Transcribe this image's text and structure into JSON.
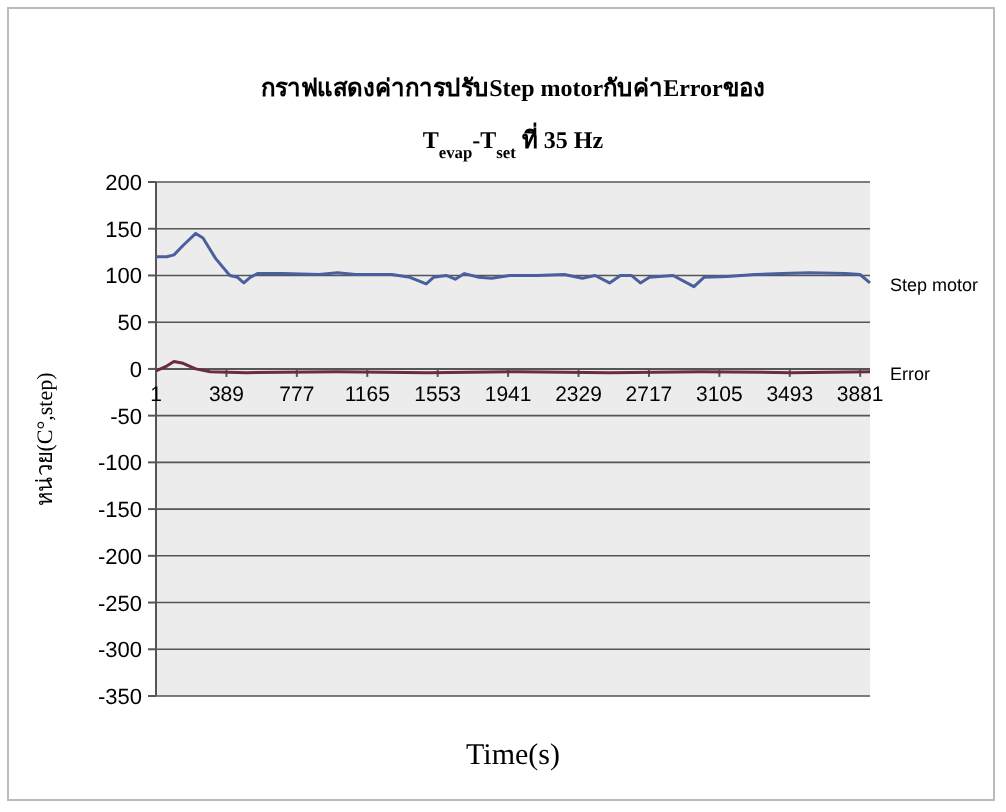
{
  "chart_data": {
    "type": "line",
    "title": "กราฟแสดงค่าการปรับStep motorกับค่าErrorของ",
    "subtitle": "T$_{evap}$-T$_{set}$ ที่ 35 Hz",
    "xlabel": "Time(s)",
    "ylabel": "หน่วย(C°,step)",
    "xlim": [
      1,
      3935
    ],
    "xticks": [
      1,
      389,
      777,
      1165,
      1553,
      1941,
      2329,
      2717,
      3105,
      3493,
      3881
    ],
    "ylim": [
      -350,
      200
    ],
    "yticks": [
      -350,
      -300,
      -250,
      -200,
      -150,
      -100,
      -50,
      0,
      50,
      100,
      150,
      200
    ],
    "grid": "y",
    "marker": "none",
    "line_style": "solid",
    "series": [
      {
        "name": "Step motor",
        "color": "#4a5f9e",
        "x": [
          1,
          60,
          100,
          150,
          220,
          260,
          330,
          408,
          450,
          485,
          520,
          560,
          700,
          900,
          1000,
          1100,
          1300,
          1400,
          1490,
          1530,
          1600,
          1650,
          1700,
          1780,
          1850,
          1950,
          2100,
          2250,
          2350,
          2420,
          2500,
          2560,
          2620,
          2670,
          2720,
          2850,
          2965,
          3020,
          3150,
          3300,
          3450,
          3600,
          3800,
          3880,
          3935
        ],
        "values": [
          120,
          120,
          122,
          132,
          145,
          140,
          118,
          100,
          98,
          92,
          98,
          102,
          102,
          101,
          103,
          101,
          101,
          98,
          91,
          98,
          100,
          96,
          102,
          98,
          97,
          100,
          100,
          101,
          97,
          100,
          92,
          100,
          100,
          92,
          98,
          100,
          88,
          98,
          99,
          101,
          102,
          103,
          102,
          101,
          92
        ]
      },
      {
        "name": "Error",
        "color": "#6b2a45",
        "x": [
          1,
          60,
          100,
          150,
          220,
          300,
          500,
          1000,
          1500,
          2000,
          2500,
          3000,
          3500,
          3935
        ],
        "values": [
          -2,
          3,
          8,
          6,
          0,
          -3,
          -4,
          -3,
          -4,
          -3,
          -4,
          -3,
          -4,
          -3
        ]
      }
    ]
  }
}
